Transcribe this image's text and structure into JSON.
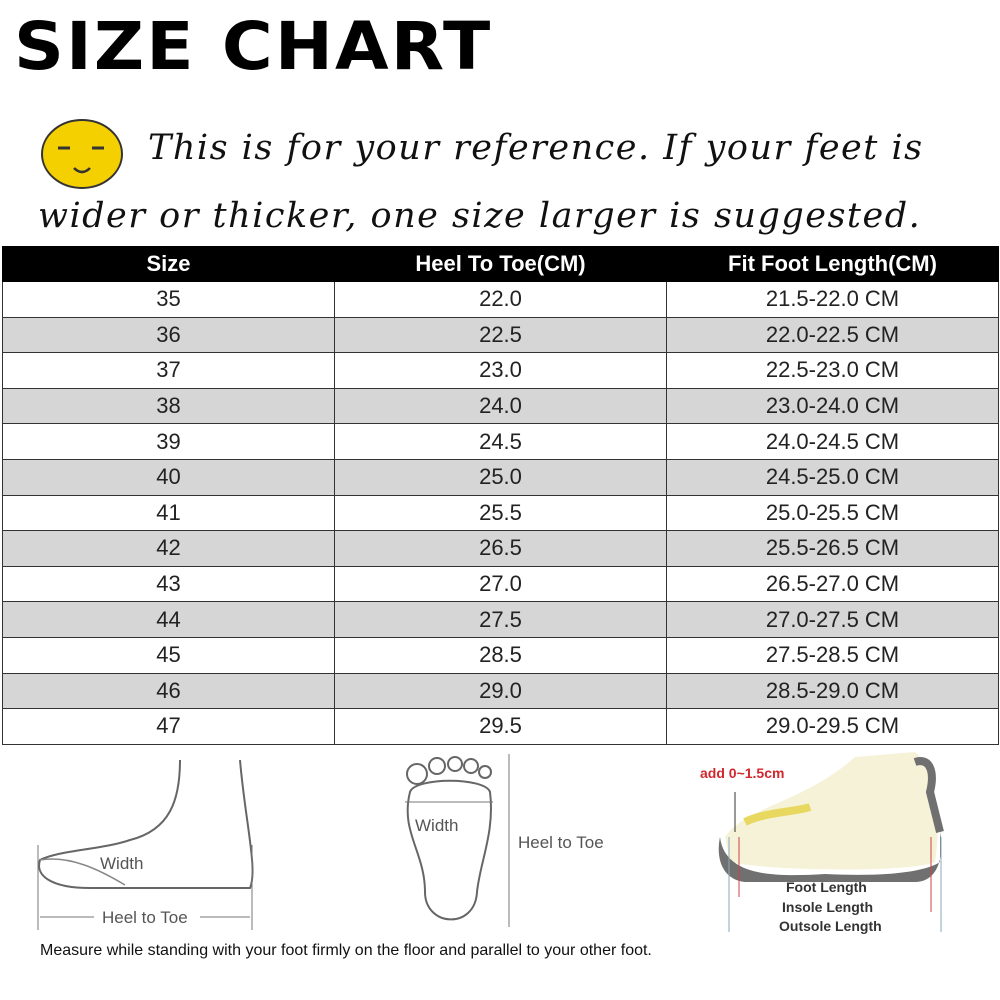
{
  "title": "SIZE CHART",
  "note_line1": "This is for your reference. If your feet is",
  "note_line2": "wider or thicker, one size larger is suggested.",
  "table": {
    "headers": [
      "Size",
      "Heel To Toe(CM)",
      "Fit Foot Length(CM)"
    ],
    "rows": [
      [
        "35",
        "22.0",
        "21.5-22.0 CM"
      ],
      [
        "36",
        "22.5",
        "22.0-22.5 CM"
      ],
      [
        "37",
        "23.0",
        "22.5-23.0 CM"
      ],
      [
        "38",
        "24.0",
        "23.0-24.0 CM"
      ],
      [
        "39",
        "24.5",
        "24.0-24.5 CM"
      ],
      [
        "40",
        "25.0",
        "24.5-25.0 CM"
      ],
      [
        "41",
        "25.5",
        "25.0-25.5 CM"
      ],
      [
        "42",
        "26.5",
        "25.5-26.5 CM"
      ],
      [
        "43",
        "27.0",
        "26.5-27.0 CM"
      ],
      [
        "44",
        "27.5",
        "27.0-27.5 CM"
      ],
      [
        "45",
        "28.5",
        "27.5-28.5 CM"
      ],
      [
        "46",
        "29.0",
        "28.5-29.0 CM"
      ],
      [
        "47",
        "29.5",
        "29.0-29.5 CM"
      ]
    ]
  },
  "side_foot": {
    "width_label": "Width",
    "heel_to_toe_label": "Heel to Toe"
  },
  "sole_foot": {
    "width_label": "Width",
    "heel_to_toe_label": "Heel to Toe"
  },
  "shoe": {
    "add_label": "add 0~1.5cm",
    "foot_length": "Foot Length",
    "insole_length": "Insole Length",
    "outsole_length": "Outsole Length"
  },
  "measure_note": "Measure while standing with your foot firmly on the floor and parallel to your other foot.",
  "colors": {
    "header_bg": "#000000",
    "stripe": "#d6d6d6",
    "smiley": "#f5d000",
    "add_label": "#d0282e"
  }
}
